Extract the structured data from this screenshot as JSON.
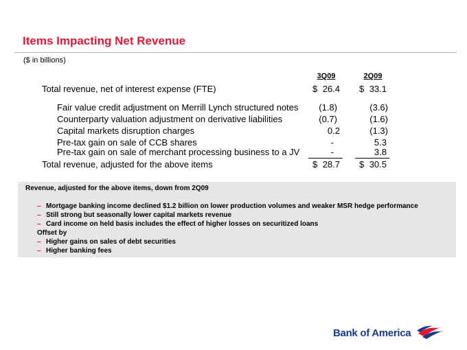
{
  "title": "Items Impacting Net Revenue",
  "subtitle": "($ in billions)",
  "columns": [
    "3Q09",
    "2Q09"
  ],
  "rows": [
    {
      "label": "Total revenue, net of interest expense (FTE)",
      "c1": "26.4",
      "c2": "33.1",
      "dollar": true,
      "indent": false
    },
    {
      "label": "Fair value credit adjustment on Merrill Lynch structured notes",
      "c1": "(1.8)",
      "c2": "(3.6)",
      "dollar": false,
      "indent": true
    },
    {
      "label": "Counterparty valuation adjustment on derivative liabilities",
      "c1": "(0.7)",
      "c2": "(1.6)",
      "dollar": false,
      "indent": true
    },
    {
      "label": "Capital markets disruption charges",
      "c1": "0.2",
      "c2": "(1.3)",
      "dollar": false,
      "indent": true
    },
    {
      "label": "Pre-tax gain on sale of CCB shares",
      "c1": "-",
      "c2": "5.3",
      "dollar": false,
      "indent": true
    },
    {
      "label": "Pre-tax gain on sale of merchant processing business to a JV",
      "c1": "-",
      "c2": "3.8",
      "dollar": false,
      "indent": true
    },
    {
      "label": "Total revenue, adjusted for the above items",
      "c1": "28.7",
      "c2": "30.5",
      "dollar": true,
      "indent": false
    }
  ],
  "currency_symbol": "$",
  "summary": {
    "heading": "Revenue, adjusted for the above items, down from 2Q09",
    "bullets": [
      "Mortgage banking income declined $1.2 billion on lower production volumes and weaker MSR hedge performance",
      "Still strong but seasonally lower capital markets revenue",
      "Card income on held basis includes the effect of higher losses on securitized loans"
    ],
    "offset_label": "Offset by",
    "offset_bullets": [
      "Higher gains on sales of debt securities",
      "Higher banking fees"
    ],
    "dash": "–"
  },
  "logo": {
    "text": "Bank of America",
    "colors": {
      "red": "#e31837",
      "blue": "#1a3a8a"
    }
  },
  "colors": {
    "accent": "#e31837",
    "panel": "#e6e6e6"
  }
}
